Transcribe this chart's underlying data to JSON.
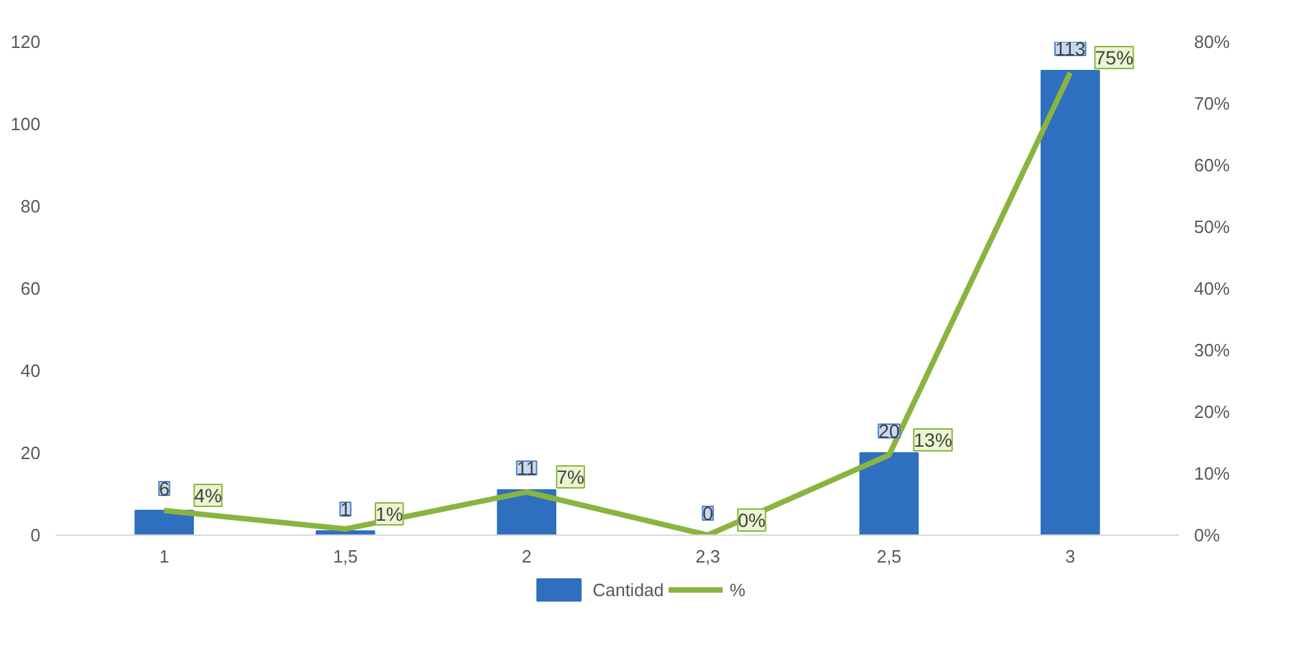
{
  "chart_data": {
    "type": "bar",
    "categories": [
      "1",
      "1,5",
      "2",
      "2,3",
      "2,5",
      "3"
    ],
    "series": [
      {
        "name": "Cantidad",
        "color": "#2e6fc0",
        "values": [
          6,
          1,
          11,
          0,
          20,
          113
        ],
        "value_labels": [
          "6",
          "1",
          "11",
          "0",
          "20",
          "113"
        ]
      },
      {
        "name": "%",
        "type": "line",
        "axis": "y2",
        "color": "#8ab440",
        "values": [
          4,
          1,
          7,
          0,
          13,
          75
        ],
        "value_labels": [
          "4%",
          "1%",
          "7%",
          "0%",
          "13%",
          "75%"
        ]
      }
    ],
    "ylim": [
      0,
      120
    ],
    "yticks": [
      0,
      20,
      40,
      60,
      80,
      100,
      120
    ],
    "y2lim": [
      0,
      80
    ],
    "y2ticks": [
      {
        "value": 0,
        "label": "0%"
      },
      {
        "value": 10,
        "label": "10%"
      },
      {
        "value": 20,
        "label": "20%"
      },
      {
        "value": 30,
        "label": "30%"
      },
      {
        "value": 40,
        "label": "40%"
      },
      {
        "value": 50,
        "label": "50%"
      },
      {
        "value": 60,
        "label": "60%"
      },
      {
        "value": 70,
        "label": "70%"
      },
      {
        "value": 80,
        "label": "80%"
      }
    ],
    "grid": false,
    "legend": "bottom",
    "marker": "none",
    "line_style": "solid"
  }
}
